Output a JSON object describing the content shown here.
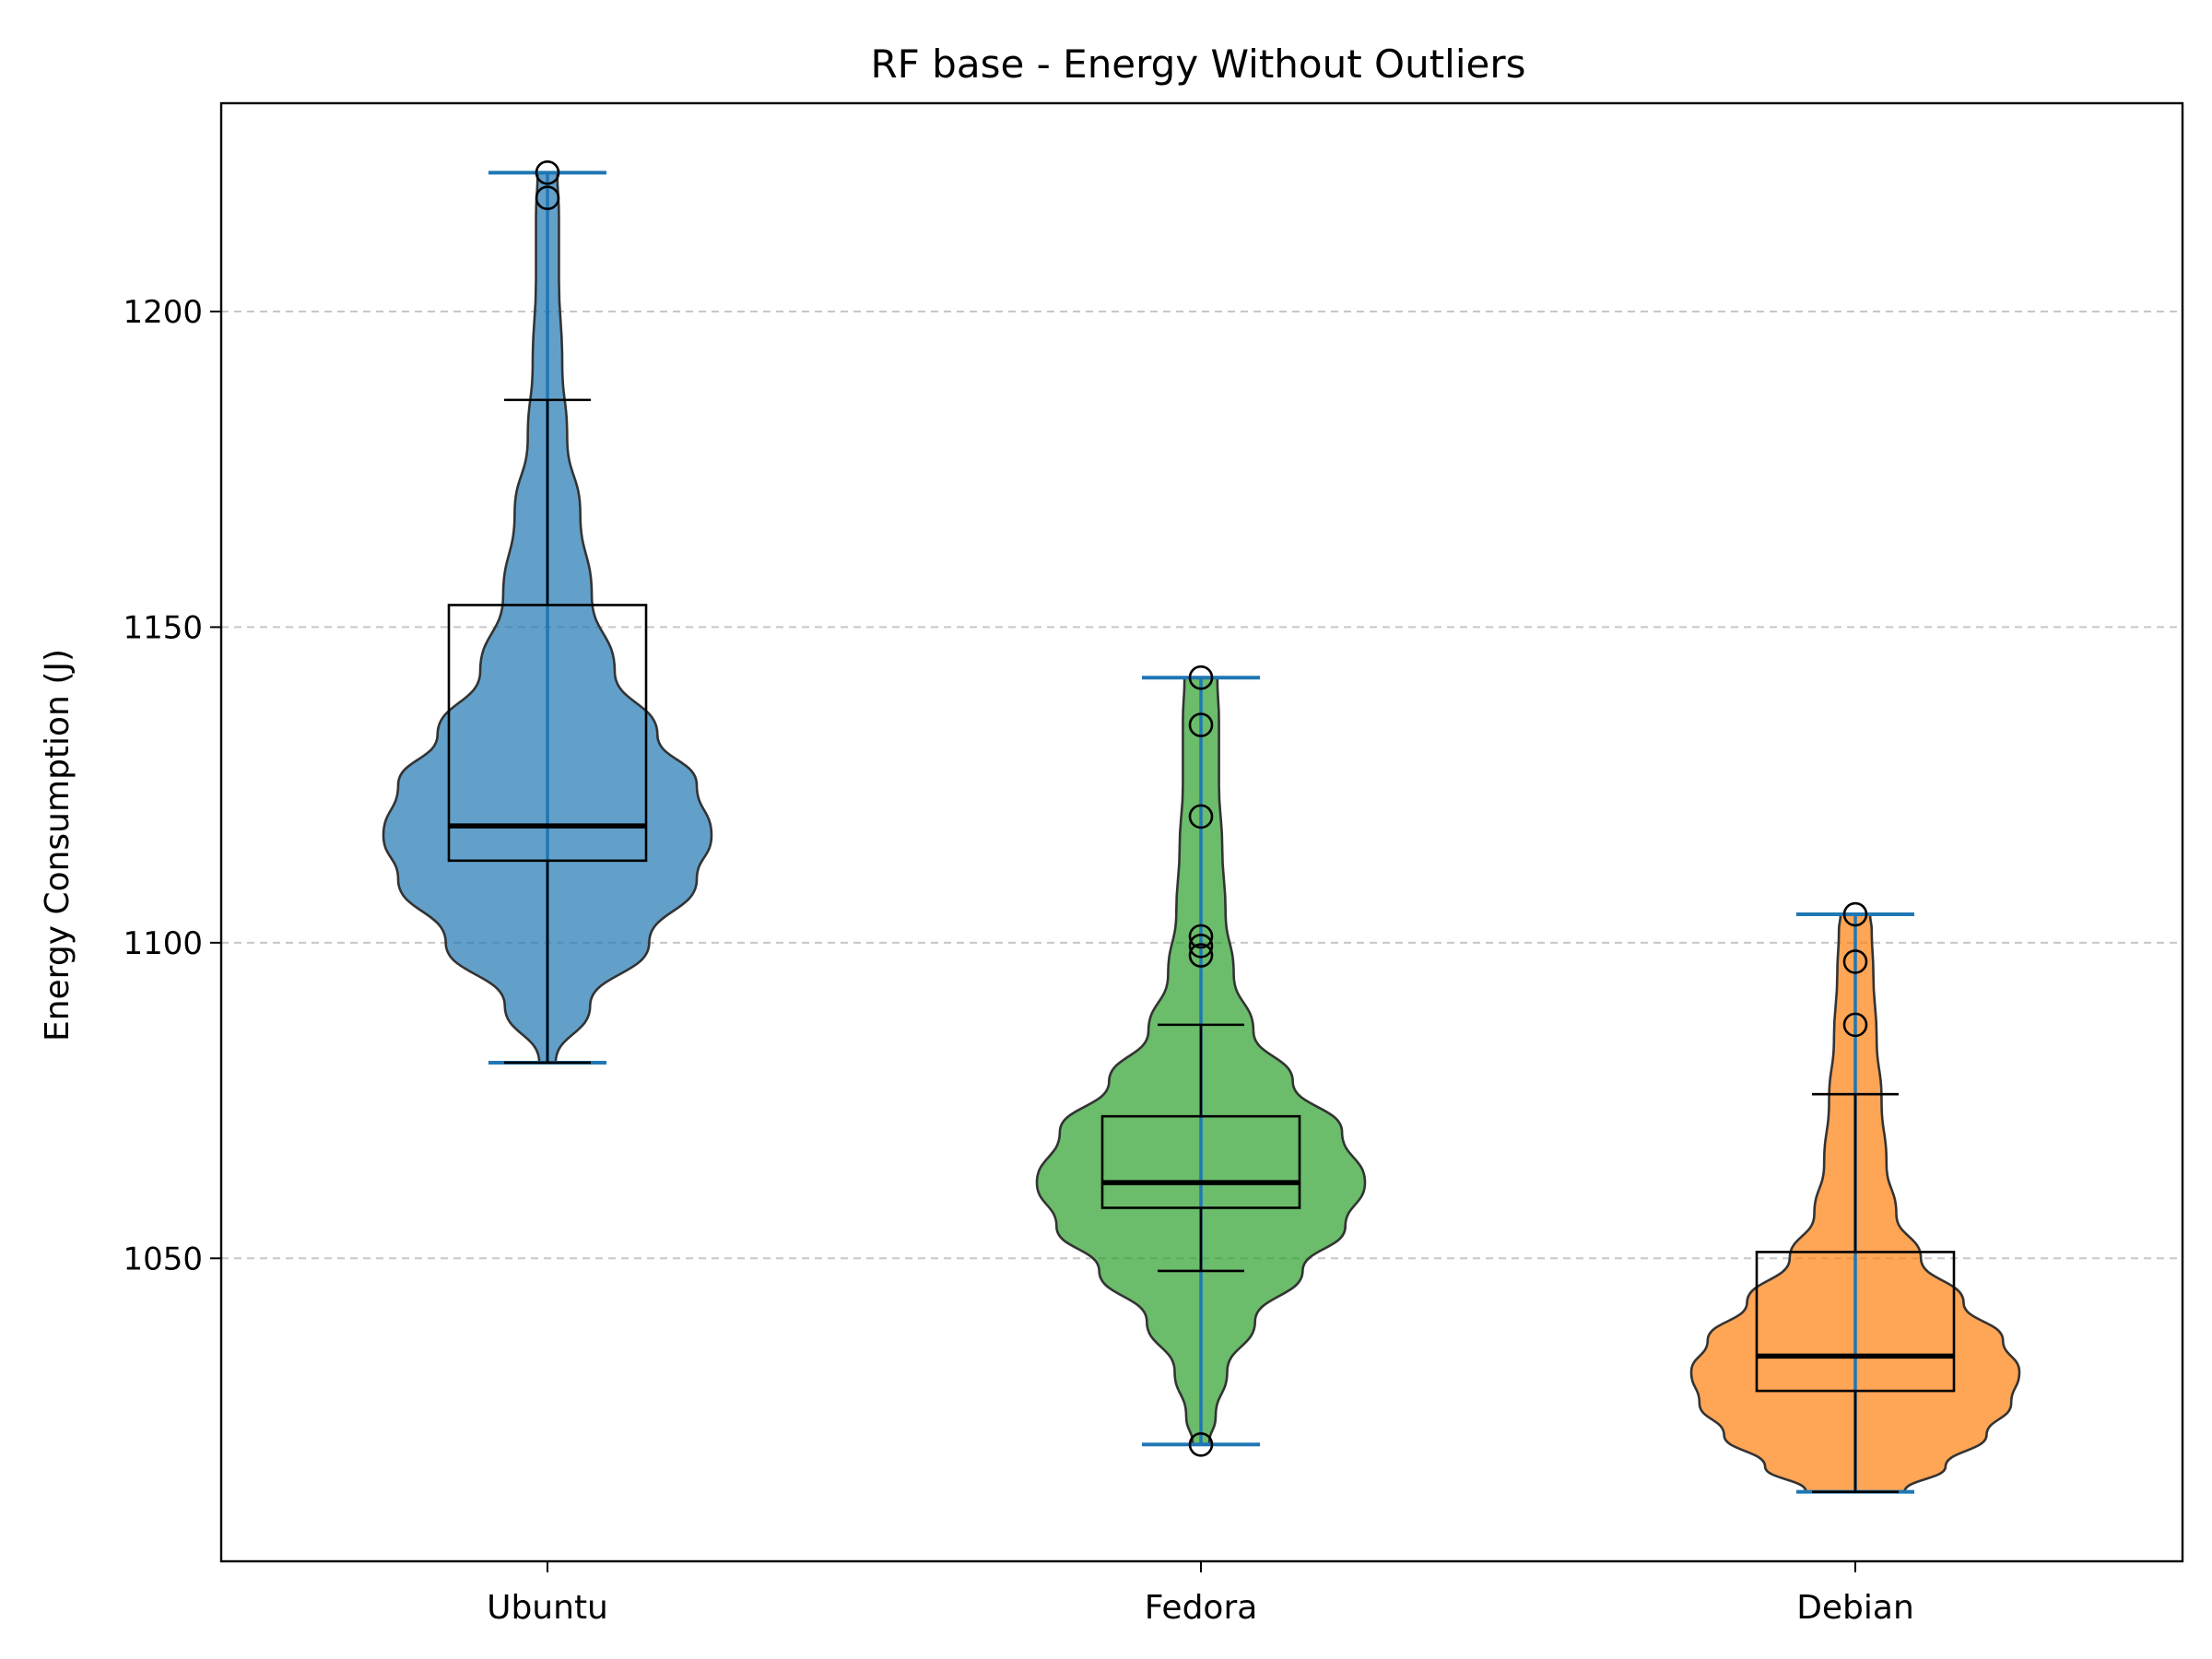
{
  "chart_data": {
    "type": "violin",
    "title": "RF base - Energy Without Outliers",
    "xlabel": "",
    "ylabel": "Energy Consumption (J)",
    "categories": [
      "Ubuntu",
      "Fedora",
      "Debian"
    ],
    "ylim": [
      1002,
      1233
    ],
    "yticks": [
      1050,
      1100,
      1150,
      1200
    ],
    "grid": "y-dashed",
    "series": [
      {
        "category": "Ubuntu",
        "color": "#1f77b4",
        "min": 1081,
        "max": 1222,
        "q1": 1113,
        "median": 1118.5,
        "q3": 1153.5,
        "whisker_low": 1081,
        "whisker_high": 1186,
        "fliers": [
          1222,
          1218
        ],
        "density": [
          [
            1081,
            0.05
          ],
          [
            1090,
            0.26
          ],
          [
            1100,
            0.62
          ],
          [
            1110,
            0.91
          ],
          [
            1117,
            1.0
          ],
          [
            1125,
            0.91
          ],
          [
            1133,
            0.67
          ],
          [
            1143,
            0.41
          ],
          [
            1155,
            0.27
          ],
          [
            1168,
            0.2
          ],
          [
            1180,
            0.12
          ],
          [
            1192,
            0.09
          ],
          [
            1205,
            0.07
          ],
          [
            1215,
            0.07
          ],
          [
            1222,
            0.06
          ]
        ]
      },
      {
        "category": "Fedora",
        "color": "#2ca02c",
        "min": 1020.5,
        "max": 1142,
        "q1": 1058,
        "median": 1062,
        "q3": 1072.5,
        "whisker_low": 1048,
        "whisker_high": 1087,
        "fliers": [
          1142,
          1134.5,
          1120,
          1101,
          1099.5,
          1098,
          1020.5
        ],
        "density": [
          [
            1020.5,
            0.05
          ],
          [
            1025,
            0.09
          ],
          [
            1032,
            0.16
          ],
          [
            1040,
            0.33
          ],
          [
            1048,
            0.62
          ],
          [
            1055,
            0.88
          ],
          [
            1062,
            1.0
          ],
          [
            1070,
            0.86
          ],
          [
            1078,
            0.56
          ],
          [
            1086,
            0.32
          ],
          [
            1095,
            0.2
          ],
          [
            1105,
            0.15
          ],
          [
            1115,
            0.13
          ],
          [
            1125,
            0.11
          ],
          [
            1135,
            0.11
          ],
          [
            1142,
            0.1
          ]
        ]
      },
      {
        "category": "Debian",
        "color": "#ff7f0e",
        "min": 1013,
        "max": 1104.5,
        "q1": 1029,
        "median": 1034.5,
        "q3": 1051,
        "whisker_low": 1013,
        "whisker_high": 1076,
        "fliers": [
          1104.5,
          1097,
          1087
        ],
        "density": [
          [
            1013,
            0.3
          ],
          [
            1017,
            0.55
          ],
          [
            1022,
            0.8
          ],
          [
            1027,
            0.95
          ],
          [
            1032,
            1.0
          ],
          [
            1037,
            0.9
          ],
          [
            1043,
            0.66
          ],
          [
            1050,
            0.4
          ],
          [
            1057,
            0.25
          ],
          [
            1065,
            0.19
          ],
          [
            1075,
            0.16
          ],
          [
            1085,
            0.13
          ],
          [
            1095,
            0.11
          ],
          [
            1102,
            0.1
          ],
          [
            1104.5,
            0.09
          ]
        ]
      }
    ]
  }
}
